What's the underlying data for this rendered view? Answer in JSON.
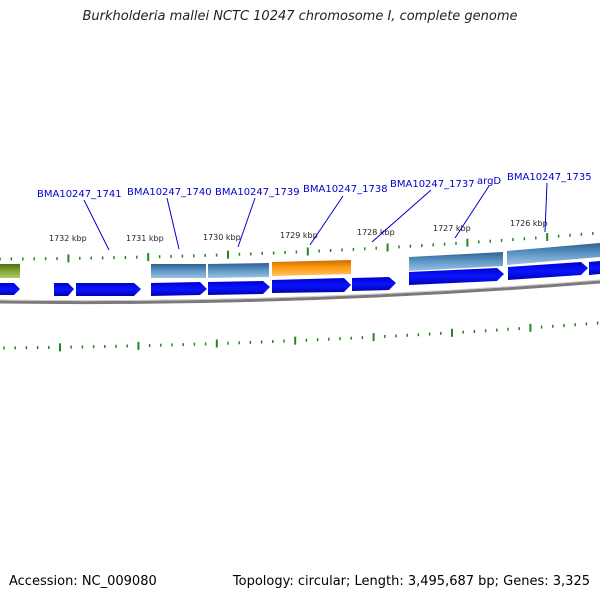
{
  "title": "Burkholderia mallei NCTC 10247 chromosome I, complete genome",
  "accession_label": "Accession: NC_009080",
  "summary_label": "Topology: circular; Length: 3,495,687 bp; Genes: 3,325",
  "colors": {
    "gene_label": "#0000cc",
    "callout_line": "#0000cc",
    "tick": "#22881e",
    "backbone": "#888888",
    "cds_arrow": "#0000ee",
    "feature_steel": "#4a7fb0",
    "feature_orange": "#ff9900",
    "feature_olive": "#6b8e23"
  },
  "coordinate_labels": [
    "1732 kbp",
    "1731 kbp",
    "1730 kbp",
    "1729 kbp",
    "1728 kbp",
    "1727 kbp",
    "1726 kbp"
  ],
  "gene_labels": [
    {
      "text": "BMA10247_1741"
    },
    {
      "text": "BMA10247_1740"
    },
    {
      "text": "BMA10247_1739"
    },
    {
      "text": "BMA10247_1738"
    },
    {
      "text": "BMA10247_1737"
    },
    {
      "text": "argD"
    },
    {
      "text": "BMA10247_1735"
    }
  ]
}
